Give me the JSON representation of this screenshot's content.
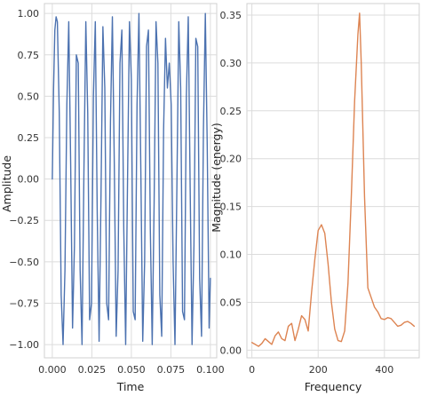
{
  "chart_data": [
    {
      "type": "line",
      "title": "",
      "xlabel": "Time",
      "ylabel": "Amplitude",
      "xlim": [
        -0.005,
        0.104
      ],
      "ylim": [
        -1.08,
        1.06
      ],
      "xticks": [
        0.0,
        0.025,
        0.05,
        0.075,
        0.1
      ],
      "xtick_labels": [
        "0.000",
        "0.025",
        "0.050",
        "0.075",
        "0.100"
      ],
      "yticks": [
        1.0,
        0.75,
        0.5,
        0.25,
        0.0,
        -0.25,
        -0.5,
        -0.75,
        -1.0
      ],
      "ytick_labels": [
        "1.00",
        "0.75",
        "0.50",
        "0.25",
        "0.00",
        "−0.25",
        "−0.50",
        "−0.75",
        "−1.00"
      ],
      "grid": true,
      "color": "#4c72b0",
      "series": [
        {
          "x": [
            0.0,
            0.0008,
            0.0016,
            0.0024,
            0.0032,
            0.0044,
            0.0056,
            0.0068,
            0.008,
            0.0092,
            0.0104,
            0.0116,
            0.0128,
            0.014,
            0.0152,
            0.0164,
            0.0176,
            0.0188,
            0.02,
            0.0212,
            0.0224,
            0.0236,
            0.0248,
            0.026,
            0.0272,
            0.0284,
            0.0296,
            0.0308,
            0.032,
            0.0332,
            0.0344,
            0.0356,
            0.0368,
            0.038,
            0.0392,
            0.0404,
            0.0416,
            0.0428,
            0.044,
            0.0452,
            0.0464,
            0.0476,
            0.0488,
            0.05,
            0.0512,
            0.0524,
            0.0536,
            0.0548,
            0.056,
            0.0572,
            0.0584,
            0.0596,
            0.0608,
            0.062,
            0.0632,
            0.0644,
            0.0656,
            0.0668,
            0.068,
            0.0692,
            0.0704,
            0.0716,
            0.0728,
            0.074,
            0.0752,
            0.0764,
            0.0776,
            0.0788,
            0.08,
            0.0812,
            0.0824,
            0.0836,
            0.0848,
            0.086,
            0.0872,
            0.0884,
            0.0896,
            0.0908,
            0.092,
            0.0932,
            0.0944,
            0.0956,
            0.0968,
            0.098,
            0.0992,
            0.1
          ],
          "y": [
            0.0,
            0.55,
            0.9,
            0.98,
            0.95,
            0.4,
            -0.7,
            -1.0,
            -0.55,
            0.45,
            0.95,
            0.1,
            -0.9,
            -0.4,
            0.75,
            0.7,
            -0.55,
            -1.0,
            0.05,
            0.95,
            0.4,
            -0.85,
            -0.75,
            0.5,
            0.95,
            -0.2,
            -0.98,
            -0.1,
            0.92,
            0.55,
            -0.75,
            -0.85,
            0.35,
            0.98,
            0.1,
            -0.95,
            -0.55,
            0.7,
            0.9,
            -0.3,
            -1.0,
            0.0,
            0.95,
            0.6,
            -0.8,
            -0.85,
            0.45,
            1.0,
            0.05,
            -0.98,
            -0.5,
            0.8,
            0.9,
            -0.3,
            -1.0,
            -0.15,
            0.95,
            0.7,
            -0.7,
            -0.95,
            0.3,
            0.85,
            0.55,
            0.7,
            0.45,
            -0.5,
            -1.0,
            -0.05,
            0.95,
            0.55,
            -0.8,
            -0.85,
            0.5,
            0.98,
            -0.05,
            -1.0,
            -0.4,
            0.85,
            0.8,
            -0.6,
            -0.95,
            0.3,
            1.0,
            0.2,
            -0.9,
            -0.6
          ]
        }
      ]
    },
    {
      "type": "line",
      "title": "",
      "xlabel": "Frequency",
      "ylabel": "Magnitude (energy)",
      "xlim": [
        -15,
        505
      ],
      "ylim": [
        -0.008,
        0.362
      ],
      "xticks": [
        0,
        200,
        400
      ],
      "xtick_labels": [
        "0",
        "200",
        "400"
      ],
      "yticks": [
        0.0,
        0.05,
        0.1,
        0.15,
        0.2,
        0.25,
        0.3,
        0.35
      ],
      "ytick_labels": [
        "0.00",
        "0.05",
        "0.10",
        "0.15",
        "0.20",
        "0.25",
        "0.30",
        "0.35"
      ],
      "grid": true,
      "color": "#dd8452",
      "series": [
        {
          "x": [
            0,
            10,
            20,
            30,
            40,
            50,
            60,
            70,
            80,
            90,
            100,
            110,
            120,
            130,
            140,
            150,
            160,
            170,
            180,
            190,
            200,
            210,
            220,
            230,
            240,
            250,
            260,
            270,
            280,
            290,
            300,
            310,
            320,
            325,
            330,
            340,
            350,
            360,
            370,
            380,
            390,
            400,
            410,
            420,
            430,
            440,
            450,
            460,
            470,
            480,
            490
          ],
          "y": [
            0.008,
            0.006,
            0.004,
            0.007,
            0.012,
            0.009,
            0.006,
            0.015,
            0.019,
            0.012,
            0.01,
            0.025,
            0.028,
            0.01,
            0.022,
            0.036,
            0.032,
            0.02,
            0.06,
            0.095,
            0.125,
            0.131,
            0.122,
            0.09,
            0.05,
            0.022,
            0.01,
            0.009,
            0.02,
            0.07,
            0.16,
            0.26,
            0.33,
            0.352,
            0.3,
            0.16,
            0.065,
            0.055,
            0.045,
            0.04,
            0.033,
            0.032,
            0.034,
            0.033,
            0.029,
            0.025,
            0.026,
            0.029,
            0.03,
            0.028,
            0.025
          ]
        }
      ]
    }
  ]
}
